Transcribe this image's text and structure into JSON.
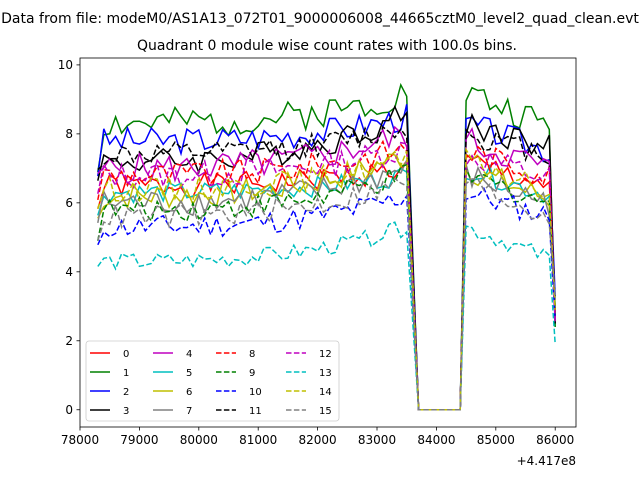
{
  "chart_data": {
    "type": "line",
    "title": "Quadrant 0 module wise count rates with 100.0s bins.",
    "suptitle": "Data from file: modeM0/AS1A13_072T01_9000006008_44665cztM0_level2_quad_clean.evt",
    "xlabel": "",
    "ylabel": "",
    "x_offset_label": "+4.417e8",
    "xlim": [
      78000,
      86350
    ],
    "ylim": [
      -0.5,
      10.2
    ],
    "xticks": [
      78000,
      79000,
      80000,
      81000,
      82000,
      83000,
      84000,
      85000,
      86000
    ],
    "yticks": [
      0,
      2,
      4,
      6,
      8,
      10
    ],
    "grid": false,
    "legend": {
      "placement": "lower-left",
      "columns": 4
    },
    "x": {
      "seg1": [
        78300,
        78400,
        78500,
        78600,
        78700,
        78800,
        78900,
        79000,
        79100,
        79200,
        79300,
        79400,
        79500,
        79600,
        79700,
        79800,
        79900,
        80000,
        80100,
        80200,
        80300,
        80400,
        80500,
        80600,
        80700,
        80800,
        80900,
        81000,
        81100,
        81200,
        81300,
        81400,
        81500,
        81600,
        81700,
        81800,
        81900,
        82000,
        82100,
        82200,
        82300,
        82400,
        82500,
        82600,
        82700,
        82800,
        82900,
        83000,
        83100,
        83200,
        83300,
        83400,
        83500
      ],
      "gap": [
        83700,
        83800,
        83900,
        84000,
        84100,
        84200,
        84300,
        84400
      ],
      "seg2": [
        84500,
        84600,
        84700,
        84800,
        84900,
        85000,
        85100,
        85200,
        85300,
        85400,
        85500,
        85600,
        85700,
        85800,
        85900,
        86000
      ]
    },
    "series": [
      {
        "name": "0",
        "color": "#ff0000",
        "dash": "solid",
        "seg1_base": 6.5,
        "seg1_end": 7.0,
        "seg1_start": 5.8,
        "seg2_peak": 7.2,
        "seg2_base": 6.5,
        "amp": 0.35,
        "seed": 1
      },
      {
        "name": "1",
        "color": "#008000",
        "dash": "solid",
        "seg1_base": 8.3,
        "seg1_end": 9.2,
        "seg1_start": 7.0,
        "seg2_peak": 9.2,
        "seg2_base": 8.2,
        "amp": 0.45,
        "seed": 2
      },
      {
        "name": "2",
        "color": "#0000ff",
        "dash": "solid",
        "seg1_base": 7.8,
        "seg1_end": 8.5,
        "seg1_start": 7.0,
        "seg2_peak": 8.3,
        "seg2_base": 7.5,
        "amp": 0.4,
        "seed": 3
      },
      {
        "name": "3",
        "color": "#000000",
        "dash": "solid",
        "seg1_base": 7.2,
        "seg1_end": 8.6,
        "seg1_start": 7.0,
        "seg2_peak": 8.3,
        "seg2_base": 7.6,
        "amp": 0.4,
        "seed": 4
      },
      {
        "name": "4",
        "color": "#bf00bf",
        "dash": "solid",
        "seg1_base": 7.0,
        "seg1_end": 8.0,
        "seg1_start": 6.5,
        "seg2_peak": 7.8,
        "seg2_base": 7.0,
        "amp": 0.45,
        "seed": 5
      },
      {
        "name": "5",
        "color": "#00bfbf",
        "dash": "solid",
        "seg1_base": 6.3,
        "seg1_end": 6.8,
        "seg1_start": 5.5,
        "seg2_peak": 7.0,
        "seg2_base": 6.2,
        "amp": 0.3,
        "seed": 6
      },
      {
        "name": "6",
        "color": "#bfbf00",
        "dash": "solid",
        "seg1_base": 6.2,
        "seg1_end": 7.4,
        "seg1_start": 5.5,
        "seg2_peak": 7.0,
        "seg2_base": 6.1,
        "amp": 0.4,
        "seed": 7
      },
      {
        "name": "7",
        "color": "#808080",
        "dash": "solid",
        "seg1_base": 6.0,
        "seg1_end": 7.0,
        "seg1_start": 5.5,
        "seg2_peak": 6.8,
        "seg2_base": 6.0,
        "amp": 0.4,
        "seed": 8
      },
      {
        "name": "8",
        "color": "#ff0000",
        "dash": "dashed",
        "seg1_base": 6.8,
        "seg1_end": 7.6,
        "seg1_start": 6.3,
        "seg2_peak": 7.5,
        "seg2_base": 6.8,
        "amp": 0.4,
        "seed": 9
      },
      {
        "name": "9",
        "color": "#008000",
        "dash": "dashed",
        "seg1_base": 5.8,
        "seg1_end": 6.8,
        "seg1_start": 5.2,
        "seg2_peak": 6.8,
        "seg2_base": 6.0,
        "amp": 0.35,
        "seed": 10
      },
      {
        "name": "10",
        "color": "#0000ff",
        "dash": "dashed",
        "seg1_base": 5.3,
        "seg1_end": 6.2,
        "seg1_start": 4.5,
        "seg2_peak": 6.3,
        "seg2_base": 5.6,
        "amp": 0.35,
        "seed": 11
      },
      {
        "name": "11",
        "color": "#000000",
        "dash": "dashed",
        "seg1_base": 7.4,
        "seg1_end": 8.2,
        "seg1_start": 6.8,
        "seg2_peak": 8.0,
        "seg2_base": 7.4,
        "amp": 0.35,
        "seed": 12
      },
      {
        "name": "12",
        "color": "#bf00bf",
        "dash": "dashed",
        "seg1_base": 6.8,
        "seg1_end": 7.6,
        "seg1_start": 6.2,
        "seg2_peak": 7.4,
        "seg2_base": 6.7,
        "amp": 0.4,
        "seed": 13
      },
      {
        "name": "13",
        "color": "#00bfbf",
        "dash": "dashed",
        "seg1_base": 4.3,
        "seg1_end": 5.3,
        "seg1_start": 4.2,
        "seg2_peak": 5.3,
        "seg2_base": 4.4,
        "amp": 0.25,
        "seed": 14
      },
      {
        "name": "14",
        "color": "#bfbf00",
        "dash": "dashed",
        "seg1_base": 6.4,
        "seg1_end": 7.3,
        "seg1_start": 6.0,
        "seg2_peak": 7.2,
        "seg2_base": 6.3,
        "amp": 0.35,
        "seed": 15
      },
      {
        "name": "15",
        "color": "#808080",
        "dash": "dashed",
        "seg1_base": 5.6,
        "seg1_end": 6.6,
        "seg1_start": 5.2,
        "seg2_peak": 6.6,
        "seg2_base": 5.6,
        "amp": 0.35,
        "seed": 16
      }
    ],
    "tail_values": [
      2.7,
      2.4,
      3.3,
      2.5,
      2.6,
      3.0,
      2.9,
      3.2,
      2.8,
      2.7,
      2.6,
      2.9,
      2.5,
      1.9,
      2.9,
      3.3
    ]
  }
}
